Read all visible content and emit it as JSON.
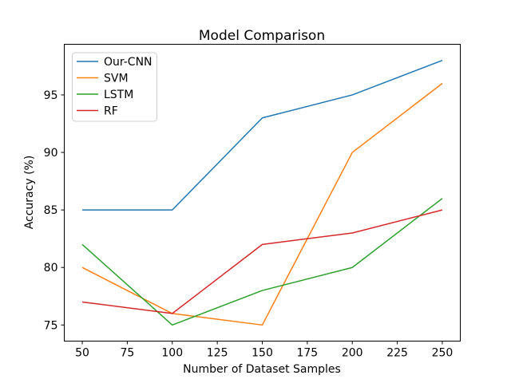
{
  "chart_data": {
    "type": "line",
    "title": "Model Comparison",
    "xlabel": "Number of Dataset Samples",
    "ylabel": "Accuracy (%)",
    "x": [
      50,
      100,
      150,
      200,
      250
    ],
    "series": [
      {
        "name": "Our-CNN",
        "color": "#1f77b4",
        "values": [
          85,
          85,
          93,
          95,
          98
        ]
      },
      {
        "name": "SVM",
        "color": "#ff7f0e",
        "values": [
          80,
          76,
          75,
          90,
          96
        ]
      },
      {
        "name": "LSTM",
        "color": "#2ca02c",
        "values": [
          82,
          75,
          78,
          80,
          86
        ]
      },
      {
        "name": "RF",
        "color": "#d62728",
        "values": [
          77,
          76,
          82,
          83,
          85
        ]
      }
    ],
    "xticks": [
      50,
      75,
      100,
      125,
      150,
      175,
      200,
      225,
      250
    ],
    "yticks": [
      75,
      80,
      85,
      90,
      95
    ],
    "xlim": [
      40,
      260
    ],
    "ylim": [
      73.6,
      99.4
    ],
    "grid": false,
    "legend_position": "upper-left",
    "background": "#ffffff",
    "spine_color": "#000000",
    "legend_border_color": "#cccccc"
  }
}
